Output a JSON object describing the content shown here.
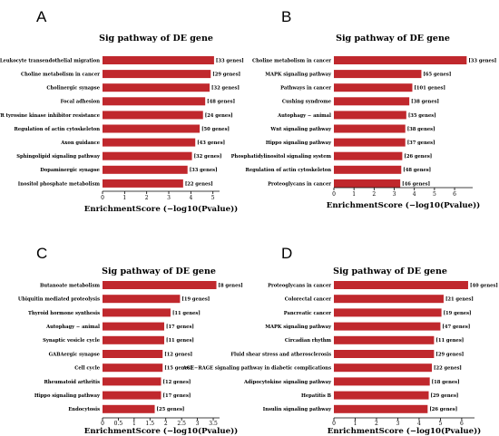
{
  "chart_data": [
    {
      "panel": "A",
      "type": "bar",
      "orientation": "horizontal",
      "title": "Sig pathway of DE gene",
      "xlabel": "EnrichmentScore (−log10(Pvalue))",
      "xlim": [
        0,
        5.3
      ],
      "xticks": [
        "0",
        "1",
        "2",
        "3",
        "4",
        "5"
      ],
      "color": "#c0282d",
      "categories": [
        "Leukocyte transendothelial migration",
        "Choline metabolism in cancer",
        "Cholinergic synapse",
        "Focal adhesion",
        "EGFR tyrosine kinase inhibitor resistance",
        "Regulation of actin cytoskeleton",
        "Axon guidance",
        "Sphingolipid signaling pathway",
        "Dopaminergic synapse",
        "Inositol phosphate metabolism"
      ],
      "values": [
        5.05,
        4.9,
        4.85,
        4.65,
        4.55,
        4.4,
        4.2,
        4.05,
        3.85,
        3.65
      ],
      "labels": [
        "[33 genes]",
        "[29 genes]",
        "[32 genes]",
        "[48 genes]",
        "[24 genes]",
        "[50 genes]",
        "[43 genes]",
        "[32 genes]",
        "[33 genes]",
        "[22 genes]"
      ]
    },
    {
      "panel": "B",
      "type": "bar",
      "orientation": "horizontal",
      "title": "Sig pathway of DE gene",
      "xlabel": "EnrichmentScore (−log10(Pvalue))",
      "xlim": [
        0,
        6.9
      ],
      "xticks": [
        "0",
        "1",
        "2",
        "3",
        "4",
        "5",
        "6"
      ],
      "color": "#c0282d",
      "categories": [
        "Choline metabolism in cancer",
        "MAPK signaling pathway",
        "Pathways in cancer",
        "Cushing syndrome",
        "Autophagy − animal",
        "Wnt signaling pathway",
        "Hippo signaling pathway",
        "Phosphatidylinositol signaling system",
        "Regulation of actin cytoskeleton",
        "Proteoglycans in cancer"
      ],
      "values": [
        6.6,
        4.35,
        3.9,
        3.75,
        3.6,
        3.55,
        3.55,
        3.4,
        3.35,
        3.3
      ],
      "labels": [
        "[33 genes]",
        "[65 genes]",
        "[101 genes]",
        "[38 genes]",
        "[35 genes]",
        "[38 genes]",
        "[37 genes]",
        "[26 genes]",
        "[48 genes]",
        "[46 genes]"
      ]
    },
    {
      "panel": "C",
      "type": "bar",
      "orientation": "horizontal",
      "title": "Sig pathway of DE gene",
      "xlabel": "EnrichmentScore (−log10(Pvalue))",
      "xlim": [
        0,
        3.7
      ],
      "xticks": [
        "0",
        "0.5",
        "1",
        "1.5",
        "2",
        "2.5",
        "3",
        "3.5"
      ],
      "color": "#c0282d",
      "categories": [
        "Butanoate metabolism",
        "Ubiquitin mediated proteolysis",
        "Thyroid hormone synthesis",
        "Autophagy − animal",
        "Synaptic vesicle cycle",
        "GABAergic synapse",
        "Cell cycle",
        "Rheumatoid arthritis",
        "Hippo signaling pathway",
        "Endocytosis"
      ],
      "values": [
        3.6,
        2.45,
        2.15,
        1.95,
        1.95,
        1.9,
        1.9,
        1.85,
        1.85,
        1.65
      ],
      "labels": [
        "[8 genes]",
        "[19 genes]",
        "[11 genes]",
        "[17 genes]",
        "[11 genes]",
        "[12 genes]",
        "[15 genes]",
        "[12 genes]",
        "[17 genes]",
        "[25 genes]"
      ]
    },
    {
      "panel": "D",
      "type": "bar",
      "orientation": "horizontal",
      "title": "Sig pathway of DE gene",
      "xlabel": "EnrichmentScore (−log10(Pvalue))",
      "xlim": [
        0,
        6.6
      ],
      "xticks": [
        "0",
        "1",
        "2",
        "3",
        "4",
        "5",
        "6"
      ],
      "color": "#c0282d",
      "categories": [
        "Proteoglycans in cancer",
        "Colorectal cancer",
        "Pancreatic cancer",
        "MAPK signaling pathway",
        "Circadian rhythm",
        "Fluid shear stress and atherosclerosis",
        "AGE−RAGE signaling pathway in diabetic complications",
        "Adipocytokine signaling pathway",
        "Hepatitis B",
        "Insulin signaling pathway"
      ],
      "values": [
        6.3,
        5.15,
        5.05,
        5.0,
        4.7,
        4.7,
        4.6,
        4.5,
        4.45,
        4.4
      ],
      "labels": [
        "[40 genes]",
        "[21 genes]",
        "[19 genes]",
        "[47 genes]",
        "[11 genes]",
        "[29 genes]",
        "[22 genes]",
        "[18 genes]",
        "[29 genes]",
        "[26 genes]"
      ]
    }
  ]
}
